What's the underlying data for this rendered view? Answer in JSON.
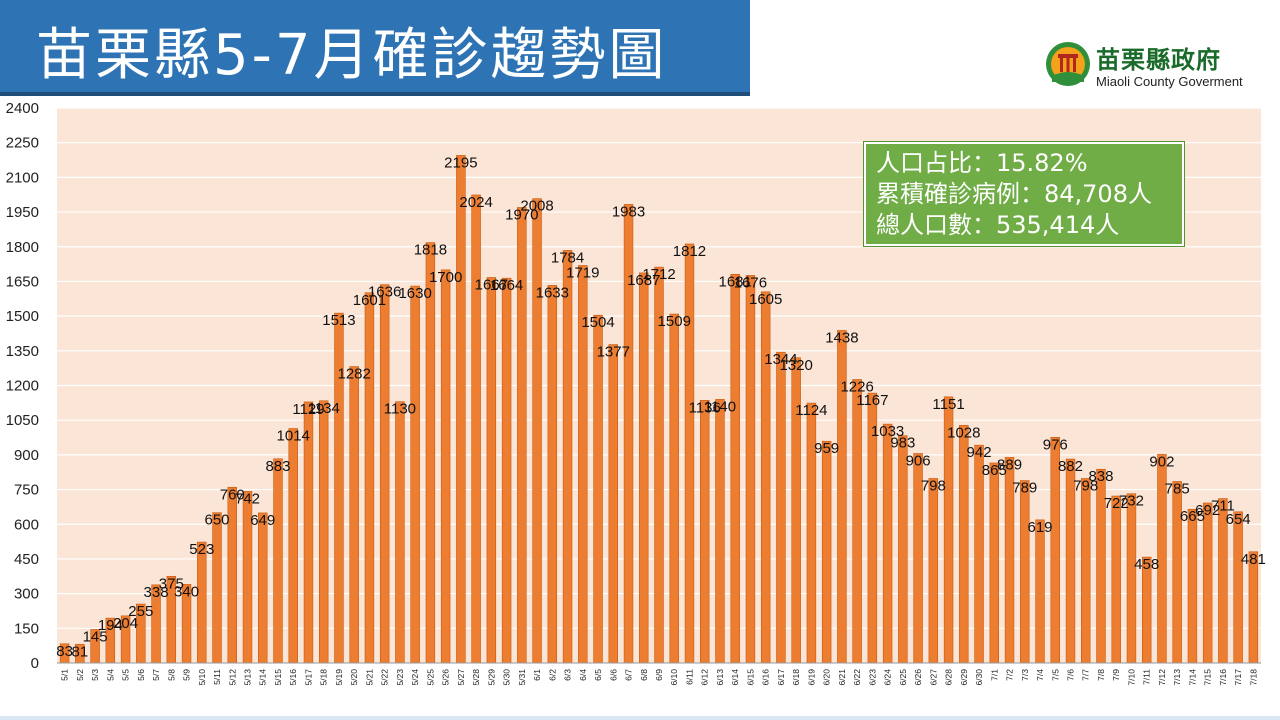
{
  "header": {
    "title": "苗栗縣5-7月確診趨勢圖"
  },
  "logo": {
    "name_cn": "苗栗縣政府",
    "name_en": "Miaoli County Goverment"
  },
  "stats": {
    "population_ratio": "人口占比：15.82%",
    "cumulative_cases": "累積確診病例：84,708人",
    "total_population": "總人口數：535,414人"
  },
  "colors": {
    "bar": "#ed7d31",
    "bar_edge": "#c55a11",
    "plot_bg": "#fbe5d6",
    "title_bg": "#2e74b5",
    "stats_bg": "#70ad47"
  },
  "chart_data": {
    "type": "bar",
    "title": "",
    "xlabel": "",
    "ylabel": "",
    "ylim": [
      0,
      2400
    ],
    "yticks": [
      0,
      150,
      300,
      450,
      600,
      750,
      900,
      1050,
      1200,
      1350,
      1500,
      1650,
      1800,
      1950,
      2100,
      2250,
      2400
    ],
    "grid": true,
    "categories": [
      "5/1",
      "5/2",
      "5/3",
      "5/4",
      "5/5",
      "5/6",
      "5/7",
      "5/8",
      "5/9",
      "5/10",
      "5/11",
      "5/12",
      "5/13",
      "5/14",
      "5/15",
      "5/16",
      "5/17",
      "5/18",
      "5/19",
      "5/20",
      "5/21",
      "5/22",
      "5/23",
      "5/24",
      "5/25",
      "5/26",
      "5/27",
      "5/28",
      "5/29",
      "5/30",
      "5/31",
      "6/1",
      "6/2",
      "6/3",
      "6/4",
      "6/5",
      "6/6",
      "6/7",
      "6/8",
      "6/9",
      "6/10",
      "6/11",
      "6/12",
      "6/13",
      "6/14",
      "6/15",
      "6/16",
      "6/17",
      "6/18",
      "6/19",
      "6/20",
      "6/21",
      "6/22",
      "6/23",
      "6/24",
      "6/25",
      "6/26",
      "6/27",
      "6/28",
      "6/29",
      "6/30",
      "7/1",
      "7/2",
      "7/3",
      "7/4",
      "7/5",
      "7/6",
      "7/7",
      "7/8",
      "7/9",
      "7/10",
      "7/11",
      "7/12",
      "7/13",
      "7/14",
      "7/15",
      "7/16",
      "7/17",
      "7/18"
    ],
    "values": [
      83,
      81,
      145,
      194,
      204,
      255,
      338,
      375,
      340,
      523,
      650,
      760,
      742,
      649,
      883,
      1014,
      1129,
      1134,
      1513,
      1282,
      1601,
      1636,
      1130,
      1630,
      1818,
      1700,
      2195,
      2024,
      1667,
      1664,
      1970,
      2008,
      1633,
      1784,
      1719,
      1504,
      1377,
      1983,
      1687,
      1712,
      1509,
      1812,
      1136,
      1140,
      1681,
      1676,
      1605,
      1344,
      1320,
      1124,
      959,
      1438,
      1226,
      1167,
      1033,
      983,
      906,
      798,
      1151,
      1028,
      942,
      865,
      889,
      789,
      619,
      976,
      882,
      798,
      838,
      722,
      732,
      458,
      902,
      785,
      665,
      692,
      711,
      654,
      481
    ]
  }
}
